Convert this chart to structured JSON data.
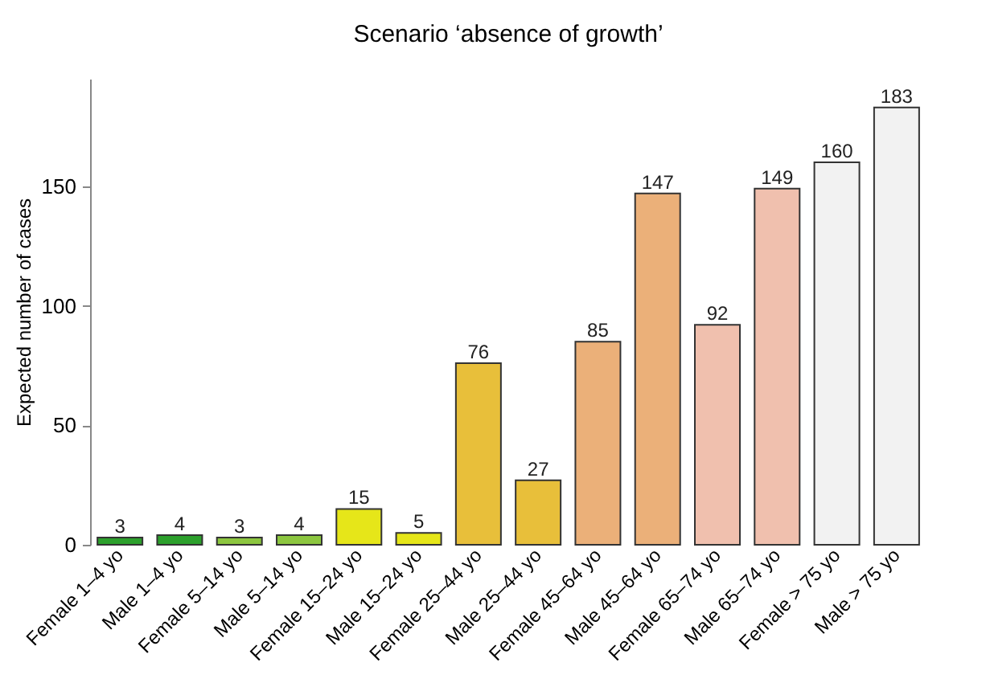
{
  "chart_data": {
    "type": "bar",
    "title": "Scenario ‘absence of growth’",
    "ylabel": "Expected number of cases",
    "categories": [
      "Female 1–4 yo",
      "Male 1–4 yo",
      "Female 5–14 yo",
      "Male 5–14 yo",
      "Female 15–24 yo",
      "Male 15–24 yo",
      "Female 25–44 yo",
      "Male 25–44 yo",
      "Female 45–64 yo",
      "Male 45–64 yo",
      "Female 65–74 yo",
      "Male 65–74 yo",
      "Female > 75 yo",
      "Male > 75 yo"
    ],
    "values": [
      3,
      4,
      3,
      4,
      15,
      5,
      76,
      27,
      85,
      147,
      92,
      149,
      160,
      183
    ],
    "colors": [
      "#2ca02c",
      "#2ca02c",
      "#8cc63f",
      "#8cc63f",
      "#e6e619",
      "#e6e619",
      "#e8bf3a",
      "#e8bf3a",
      "#ebb079",
      "#ebb079",
      "#f0c0ae",
      "#f0c0ae",
      "#f2f2f2",
      "#f2f2f2"
    ],
    "ylim": [
      0,
      195
    ],
    "yticks": [
      0,
      50,
      100,
      150
    ],
    "data_labels": true,
    "grid": false
  }
}
